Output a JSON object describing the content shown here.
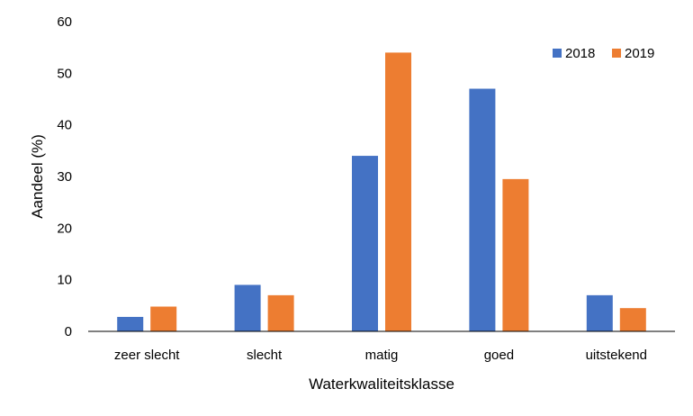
{
  "chart_data": {
    "type": "bar",
    "categories": [
      "zeer slecht",
      "slecht",
      "matig",
      "goed",
      "uitstekend"
    ],
    "series": [
      {
        "name": "2018",
        "color": "#4472C4",
        "values": [
          2.8,
          9.0,
          34.0,
          47.0,
          7.0
        ]
      },
      {
        "name": "2019",
        "color": "#ED7D31",
        "values": [
          4.8,
          7.0,
          54.0,
          29.5,
          4.5
        ]
      }
    ],
    "xlabel": "Waterkwaliteitsklasse",
    "ylabel": "Aandeel (%)",
    "ylim": [
      0,
      60
    ],
    "yticks": [
      0,
      10,
      20,
      30,
      40,
      50,
      60
    ],
    "grid": false,
    "legend_position": "top-right"
  }
}
